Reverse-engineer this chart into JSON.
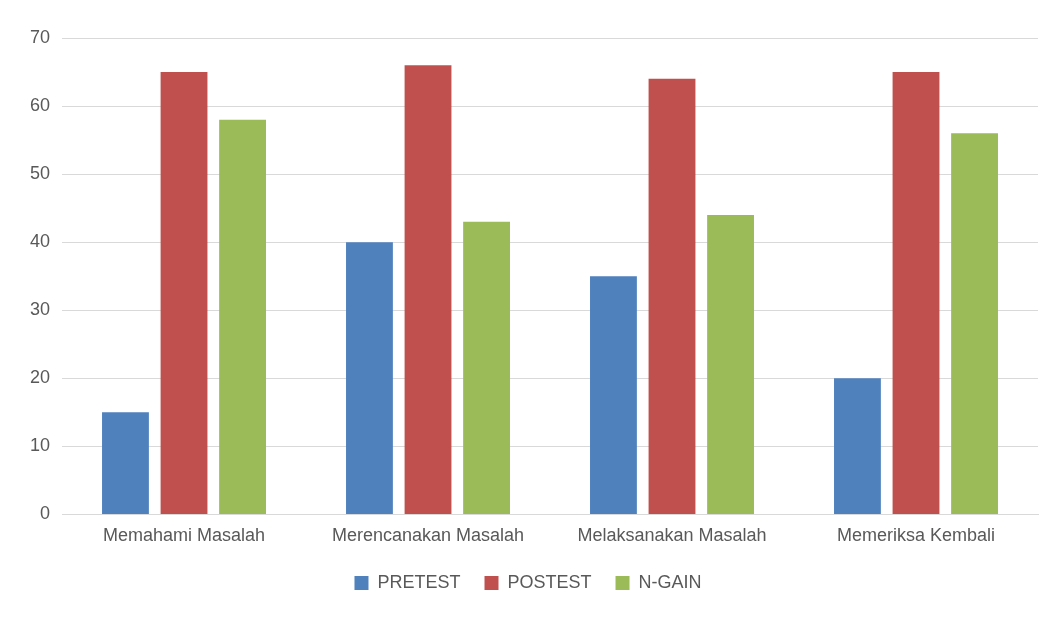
{
  "chart_data": {
    "type": "bar",
    "categories": [
      "Memahami Masalah",
      "Merencanakan Masalah",
      "Melaksanakan Masalah",
      "Memeriksa Kembali"
    ],
    "series": [
      {
        "name": "PRETEST",
        "color": "#4f81bd",
        "values": [
          15,
          40,
          35,
          20
        ]
      },
      {
        "name": "POSTEST",
        "color": "#c0504d",
        "values": [
          65,
          66,
          64,
          65
        ]
      },
      {
        "name": "N-GAIN",
        "color": "#9bbb59",
        "values": [
          58,
          43,
          44,
          56
        ]
      }
    ],
    "ylim": [
      0,
      70
    ],
    "yticks": [
      0,
      10,
      20,
      30,
      40,
      50,
      60,
      70
    ],
    "grid": "y",
    "legend": "bottom"
  }
}
